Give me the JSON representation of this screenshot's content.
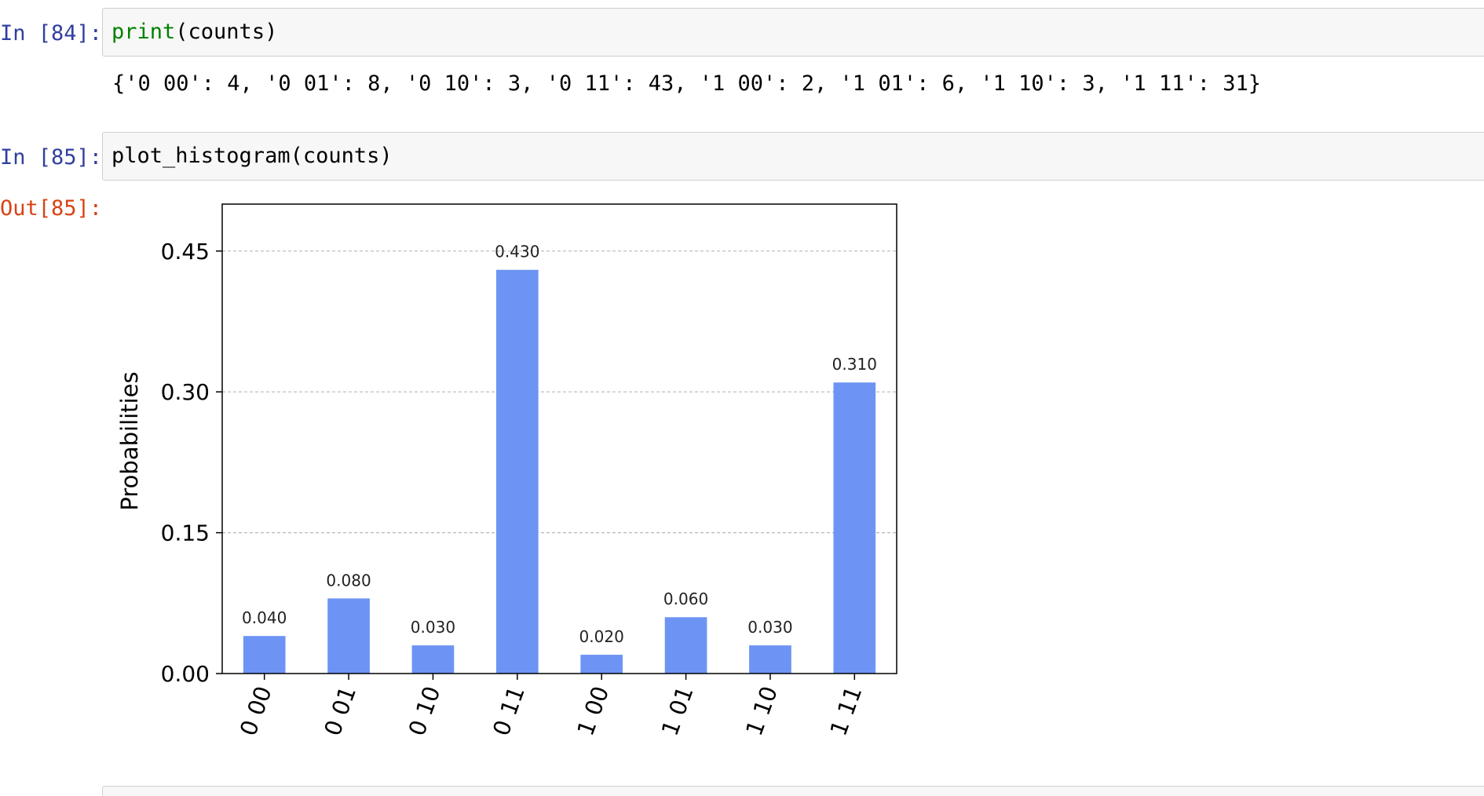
{
  "cells": [
    {
      "prompt": "In [84]:",
      "code_fn": "print",
      "code_rest": "(counts)",
      "output": "{'0 00': 4, '0 01': 8, '0 10': 3, '0 11': 43, '1 00': 2, '1 01': 6, '1 10': 3, '1 11': 31}"
    },
    {
      "prompt": "In [85]:",
      "code": "plot_histogram(counts)",
      "out_prompt": "Out[85]:"
    }
  ],
  "chart_data": {
    "type": "bar",
    "categories": [
      "0 00",
      "0 01",
      "0 10",
      "0 11",
      "1 00",
      "1 01",
      "1 10",
      "1 11"
    ],
    "values": [
      0.04,
      0.08,
      0.03,
      0.43,
      0.02,
      0.06,
      0.03,
      0.31
    ],
    "value_labels": [
      "0.040",
      "0.080",
      "0.030",
      "0.430",
      "0.020",
      "0.060",
      "0.030",
      "0.310"
    ],
    "ylabel": "Probabilities",
    "ylim": [
      0,
      0.5
    ],
    "yticks": [
      0,
      0.15,
      0.3,
      0.45
    ],
    "ytick_labels": [
      "0.00",
      "0.15",
      "0.30",
      "0.45"
    ],
    "grid": "horizontal dashed",
    "bar_color": "#6d94f4"
  }
}
